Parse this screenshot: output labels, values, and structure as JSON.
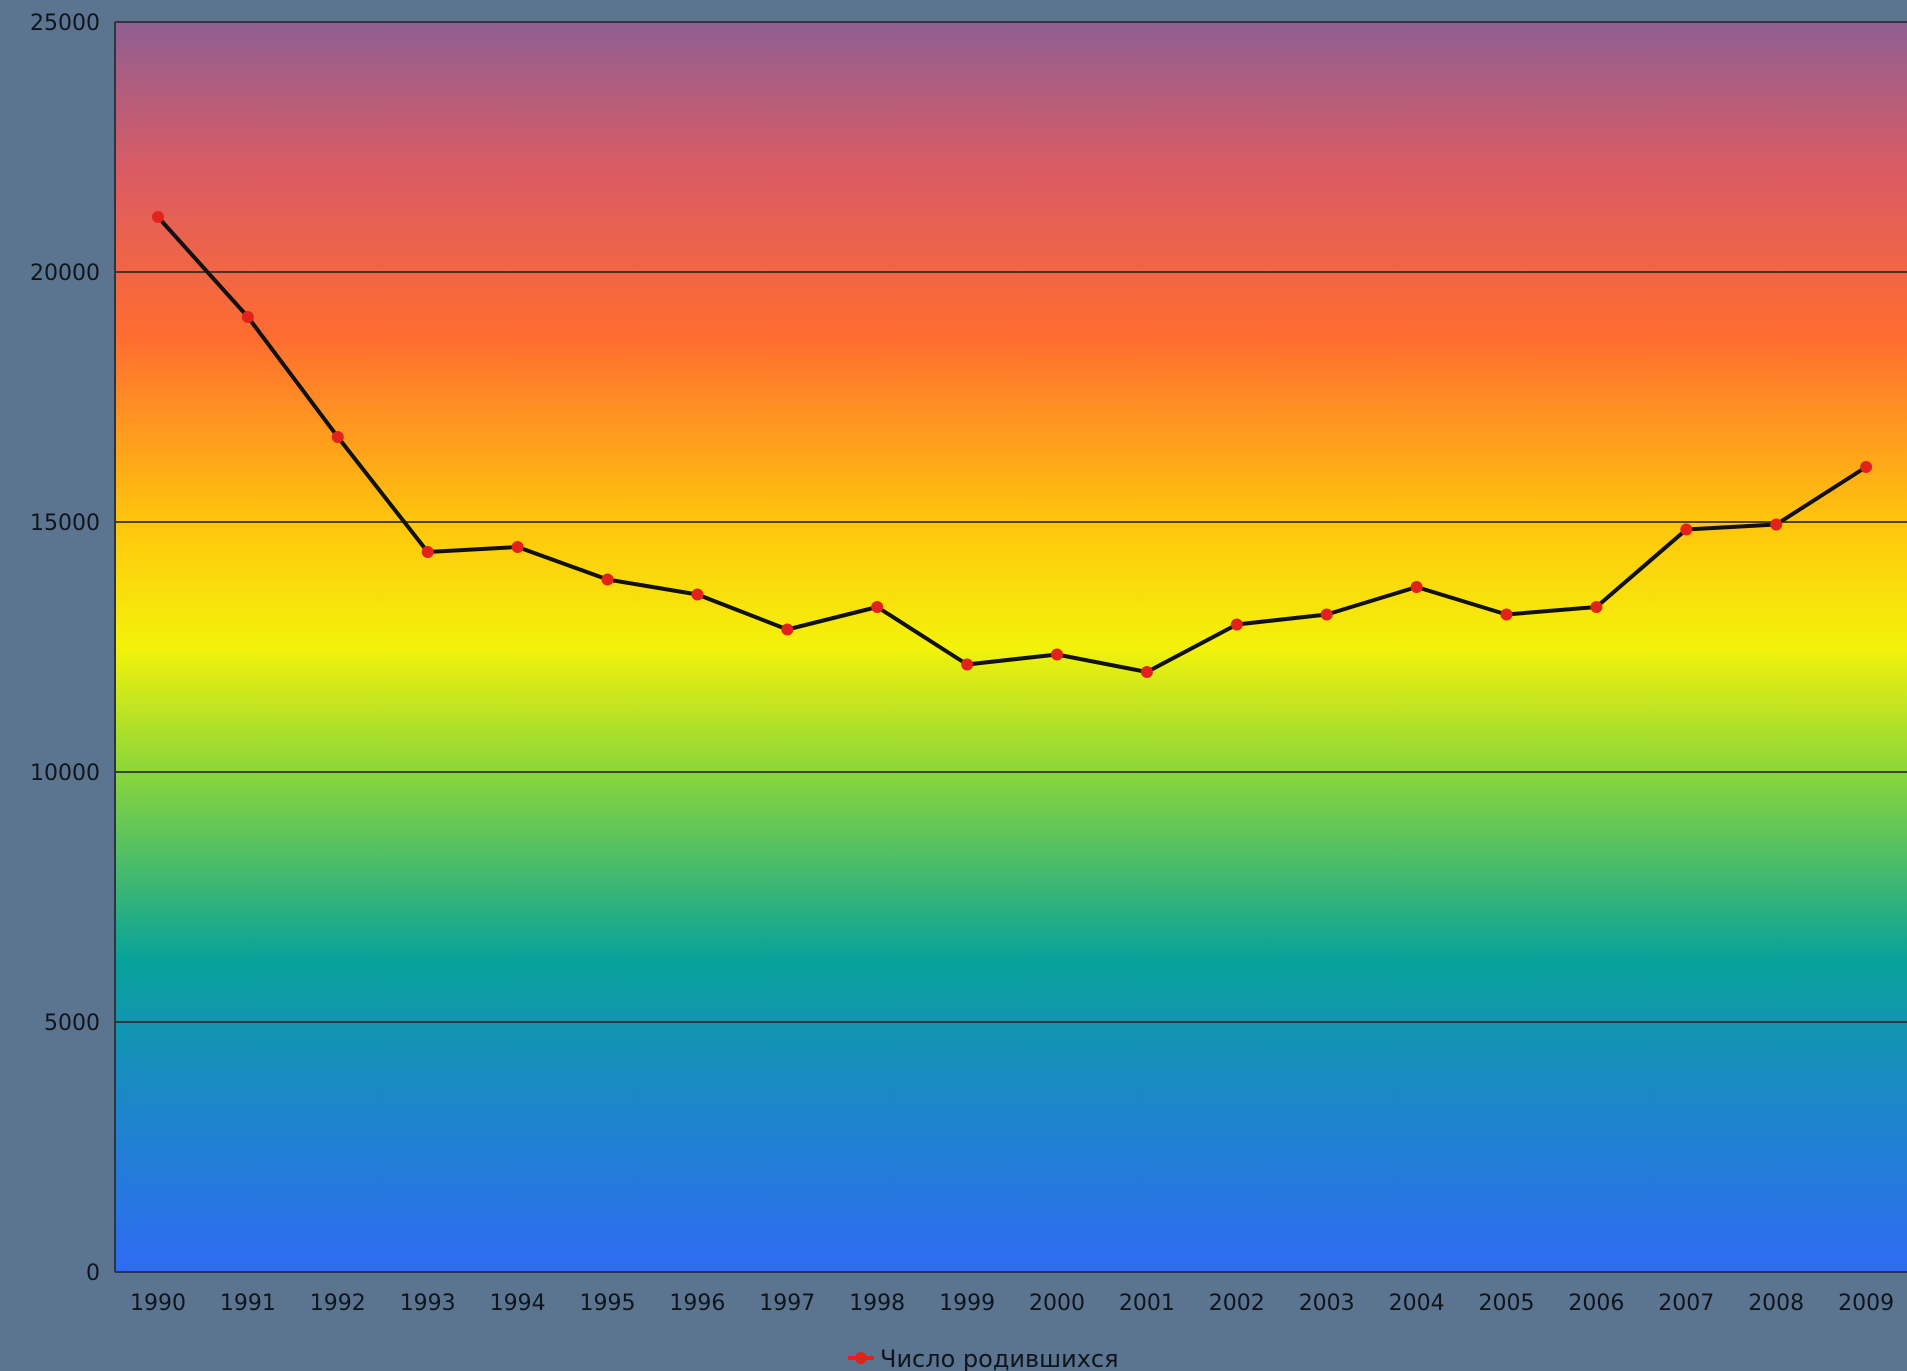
{
  "chart_data": {
    "type": "line",
    "title": "",
    "xlabel": "",
    "ylabel": "",
    "x": [
      "1990",
      "1991",
      "1992",
      "1993",
      "1994",
      "1995",
      "1996",
      "1997",
      "1998",
      "1999",
      "2000",
      "2001",
      "2002",
      "2003",
      "2004",
      "2005",
      "2006",
      "2007",
      "2008",
      "2009"
    ],
    "series": [
      {
        "name": "Число родившихся",
        "values": [
          21100,
          19100,
          16700,
          14400,
          14500,
          13850,
          13550,
          12850,
          13300,
          12150,
          12350,
          12000,
          12950,
          13150,
          13700,
          13150,
          13300,
          14850,
          14950,
          16100
        ]
      }
    ],
    "ylim": [
      0,
      25000
    ],
    "yticks": [
      "0",
      "5000",
      "10000",
      "15000",
      "20000",
      "25000"
    ],
    "grid": true,
    "legend_position": "bottom-center",
    "colors": {
      "page_background": "#5b7590",
      "line": "#111111",
      "markers": "#e3231b",
      "gridline": "#2a2a2a",
      "gradient": [
        "#2f6bf3",
        "#1a8ac4",
        "#08a29a",
        "#8ad63a",
        "#f4f20a",
        "#ffc50d",
        "#ff6c31",
        "#db5b63",
        "#8f5f92"
      ]
    }
  }
}
